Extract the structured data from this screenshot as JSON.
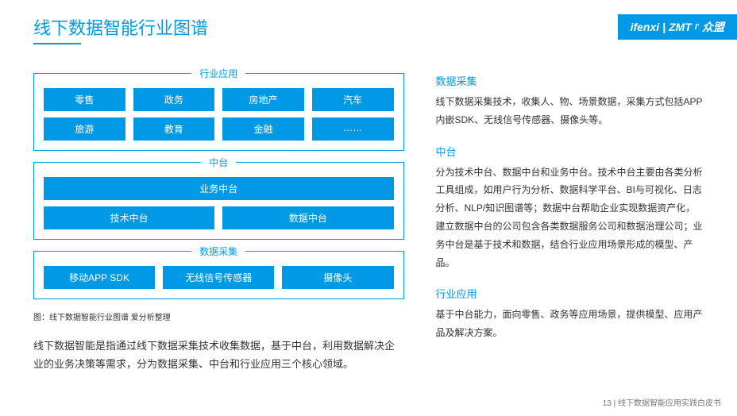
{
  "title": "线下数据智能行业图谱",
  "logo": {
    "brand1": "ifenxi",
    "sep": "|",
    "brand2": "ZMT",
    "brand3": "众盟"
  },
  "colors": {
    "primary": "#0099e5",
    "text": "#333333",
    "bg": "#ffffff"
  },
  "diagram": {
    "sections": [
      {
        "label": "行业应用",
        "rows": [
          [
            "零售",
            "政务",
            "房地产",
            "汽车"
          ],
          [
            "旅游",
            "教育",
            "金融",
            "……"
          ]
        ]
      },
      {
        "label": "中台",
        "rows": [
          [
            "业务中台"
          ],
          [
            "技术中台",
            "数据中台"
          ]
        ]
      },
      {
        "label": "数据采集",
        "rows": [
          [
            "移动APP SDK",
            "无线信号传感器",
            "摄像头"
          ]
        ]
      }
    ],
    "caption": "图：线下数据智能行业图谱 爱分析整理"
  },
  "left_desc": "线下数据智能是指通过线下数据采集技术收集数据，基于中台，利用数据解决企业的业务决策等需求，分为数据采集、中台和行业应用三个核心领域。",
  "right_sections": [
    {
      "heading": "数据采集",
      "body": "线下数据采集技术，收集人、物、场景数据，采集方式包括APP内嵌SDK、无线信号传感器、摄像头等。"
    },
    {
      "heading": "中台",
      "body": "分为技术中台、数据中台和业务中台。技术中台主要由各类分析工具组成，如用户行为分析、数据科学平台、BI与可视化、日志分析、NLP/知识图谱等；数据中台帮助企业实现数据资产化，建立数据中台的公司包含各类数据服务公司和数据治理公司；业务中台是基于技术和数据，结合行业应用场景形成的模型、产品。"
    },
    {
      "heading": "行业应用",
      "body": "基于中台能力，面向零售、政务等应用场景，提供模型、应用产品及解决方案。"
    }
  ],
  "footer": {
    "page": "13",
    "sep": " | ",
    "doc": "线下数据智能应用实践白皮书"
  }
}
